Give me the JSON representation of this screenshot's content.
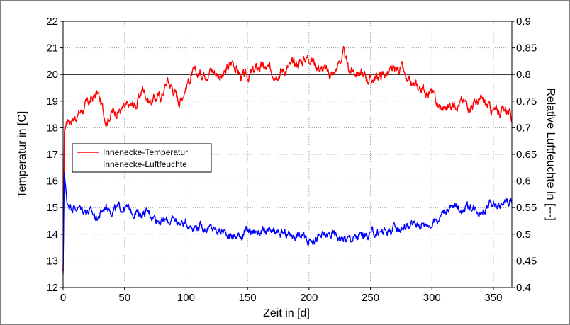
{
  "chart_data": {
    "type": "line",
    "title": "",
    "xlabel": "Zeit in [d]",
    "ylabel_left": "Temperatur in [C]",
    "ylabel_right": "Relative Luftfeuchte in [---]",
    "xlim": [
      0,
      365
    ],
    "ylim_left": [
      12,
      22
    ],
    "ylim_right": [
      0.4,
      0.9
    ],
    "x_ticks": [
      "0",
      "50",
      "100",
      "150",
      "200",
      "250",
      "300",
      "350"
    ],
    "y_ticks_left": [
      "12",
      "13",
      "14",
      "15",
      "16",
      "17",
      "18",
      "19",
      "20",
      "21",
      "22"
    ],
    "y_ticks_right": [
      "0.4",
      "0.45",
      "0.5",
      "0.55",
      "0.6",
      "0.65",
      "0.7",
      "0.75",
      "0.8",
      "0.85",
      "0.9"
    ],
    "grid": true,
    "legend_position": "left",
    "reference_line": {
      "axis": "left",
      "value": 20
    },
    "series": [
      {
        "name": "Innenecke-Temperatur",
        "axis": "left",
        "color": "#ff0000",
        "x": [
          0,
          1,
          3,
          10,
          20,
          28,
          35,
          40,
          50,
          60,
          65,
          70,
          80,
          85,
          90,
          95,
          100,
          105,
          110,
          120,
          130,
          138,
          145,
          150,
          160,
          170,
          180,
          190,
          200,
          210,
          220,
          228,
          232,
          240,
          250,
          260,
          270,
          275,
          280,
          290,
          300,
          305,
          310,
          320,
          330,
          340,
          350,
          355,
          360,
          365
        ],
        "y": [
          12.5,
          17.8,
          18.3,
          18.4,
          18.9,
          19.3,
          18.3,
          18.6,
          18.7,
          18.9,
          19.5,
          19.0,
          19.2,
          19.8,
          19.4,
          19.0,
          19.6,
          20.0,
          20.0,
          20.2,
          19.9,
          20.5,
          19.9,
          19.9,
          20.3,
          20.1,
          20.2,
          20.4,
          20.7,
          20.2,
          20.0,
          20.8,
          20.2,
          20.1,
          19.8,
          20.0,
          20.1,
          20.3,
          19.6,
          19.5,
          19.3,
          18.8,
          18.7,
          19.0,
          18.9,
          19.0,
          18.6,
          18.6,
          18.8,
          18.3
        ]
      },
      {
        "name": "Innenecke-Luftfeuchte",
        "axis": "right",
        "color": "#0000ff",
        "x": [
          0,
          1,
          3,
          10,
          20,
          28,
          35,
          40,
          50,
          60,
          70,
          80,
          90,
          100,
          110,
          120,
          130,
          140,
          150,
          160,
          170,
          180,
          190,
          200,
          210,
          220,
          230,
          240,
          250,
          260,
          270,
          280,
          290,
          300,
          305,
          310,
          320,
          330,
          340,
          350,
          355,
          360,
          365
        ],
        "y": [
          0.43,
          0.62,
          0.56,
          0.55,
          0.545,
          0.53,
          0.555,
          0.545,
          0.55,
          0.54,
          0.54,
          0.525,
          0.525,
          0.52,
          0.515,
          0.51,
          0.505,
          0.495,
          0.505,
          0.505,
          0.5,
          0.5,
          0.5,
          0.49,
          0.495,
          0.5,
          0.49,
          0.495,
          0.5,
          0.505,
          0.51,
          0.515,
          0.52,
          0.52,
          0.53,
          0.545,
          0.55,
          0.55,
          0.545,
          0.56,
          0.55,
          0.56,
          0.565
        ]
      }
    ]
  }
}
